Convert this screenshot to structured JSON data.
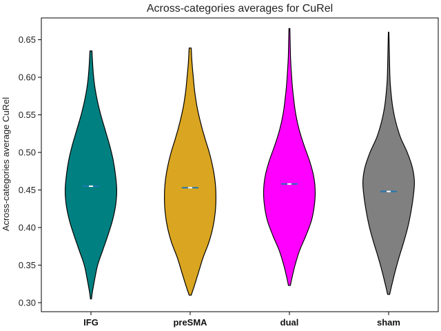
{
  "chart_data": {
    "type": "violin",
    "title": "Across-categories averages for CuRel",
    "xlabel": "",
    "ylabel": "Across-categories average CuRel",
    "ylim": [
      0.288,
      0.679
    ],
    "yticks": [
      "0.30",
      "0.35",
      "0.40",
      "0.45",
      "0.50",
      "0.55",
      "0.60",
      "0.65"
    ],
    "grid": false,
    "legend": "none",
    "categories": [
      "IFG",
      "preSMA",
      "dual",
      "sham"
    ],
    "series": [
      {
        "category": "IFG",
        "color": "#008080",
        "min": 0.305,
        "max": 0.635,
        "median": 0.455,
        "profile": [
          [
            0.305,
            0.02
          ],
          [
            0.315,
            0.06
          ],
          [
            0.33,
            0.14
          ],
          [
            0.35,
            0.26
          ],
          [
            0.37,
            0.46
          ],
          [
            0.39,
            0.66
          ],
          [
            0.41,
            0.84
          ],
          [
            0.43,
            0.96
          ],
          [
            0.45,
            1.0
          ],
          [
            0.47,
            0.95
          ],
          [
            0.49,
            0.86
          ],
          [
            0.51,
            0.72
          ],
          [
            0.53,
            0.55
          ],
          [
            0.55,
            0.38
          ],
          [
            0.57,
            0.24
          ],
          [
            0.59,
            0.14
          ],
          [
            0.61,
            0.08
          ],
          [
            0.635,
            0.04
          ]
        ]
      },
      {
        "category": "preSMA",
        "color": "#DAA520",
        "min": 0.31,
        "max": 0.639,
        "median": 0.453,
        "profile": [
          [
            0.31,
            0.04
          ],
          [
            0.32,
            0.14
          ],
          [
            0.34,
            0.32
          ],
          [
            0.36,
            0.5
          ],
          [
            0.38,
            0.72
          ],
          [
            0.4,
            0.88
          ],
          [
            0.42,
            0.97
          ],
          [
            0.44,
            1.0
          ],
          [
            0.46,
            0.97
          ],
          [
            0.48,
            0.88
          ],
          [
            0.5,
            0.74
          ],
          [
            0.52,
            0.56
          ],
          [
            0.54,
            0.4
          ],
          [
            0.56,
            0.27
          ],
          [
            0.58,
            0.18
          ],
          [
            0.6,
            0.12
          ],
          [
            0.62,
            0.07
          ],
          [
            0.639,
            0.04
          ]
        ]
      },
      {
        "category": "dual",
        "color": "#FF00FF",
        "min": 0.323,
        "max": 0.665,
        "median": 0.458,
        "profile": [
          [
            0.323,
            0.04
          ],
          [
            0.33,
            0.08
          ],
          [
            0.35,
            0.22
          ],
          [
            0.37,
            0.4
          ],
          [
            0.39,
            0.65
          ],
          [
            0.41,
            0.86
          ],
          [
            0.43,
            0.97
          ],
          [
            0.45,
            1.0
          ],
          [
            0.47,
            0.93
          ],
          [
            0.49,
            0.77
          ],
          [
            0.51,
            0.56
          ],
          [
            0.53,
            0.38
          ],
          [
            0.55,
            0.25
          ],
          [
            0.57,
            0.17
          ],
          [
            0.59,
            0.11
          ],
          [
            0.61,
            0.07
          ],
          [
            0.63,
            0.04
          ],
          [
            0.665,
            0.02
          ]
        ]
      },
      {
        "category": "sham",
        "color": "#808080",
        "min": 0.311,
        "max": 0.66,
        "median": 0.448,
        "profile": [
          [
            0.311,
            0.04
          ],
          [
            0.32,
            0.1
          ],
          [
            0.34,
            0.24
          ],
          [
            0.36,
            0.4
          ],
          [
            0.38,
            0.58
          ],
          [
            0.4,
            0.74
          ],
          [
            0.42,
            0.86
          ],
          [
            0.44,
            0.95
          ],
          [
            0.46,
            1.0
          ],
          [
            0.48,
            0.92
          ],
          [
            0.5,
            0.72
          ],
          [
            0.52,
            0.46
          ],
          [
            0.54,
            0.28
          ],
          [
            0.56,
            0.16
          ],
          [
            0.58,
            0.09
          ],
          [
            0.6,
            0.05
          ],
          [
            0.63,
            0.03
          ],
          [
            0.66,
            0.01
          ]
        ]
      }
    ]
  }
}
